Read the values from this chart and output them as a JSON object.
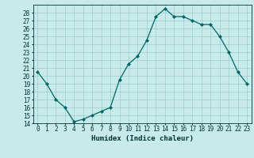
{
  "x": [
    0,
    1,
    2,
    3,
    4,
    5,
    6,
    7,
    8,
    9,
    10,
    11,
    12,
    13,
    14,
    15,
    16,
    17,
    18,
    19,
    20,
    21,
    22,
    23
  ],
  "y": [
    20.5,
    19.0,
    17.0,
    16.0,
    14.2,
    14.5,
    15.0,
    15.5,
    16.0,
    19.5,
    21.5,
    22.5,
    24.5,
    27.5,
    28.5,
    27.5,
    27.5,
    27.0,
    26.5,
    26.5,
    25.0,
    23.0,
    20.5,
    19.0
  ],
  "line_color": "#006666",
  "marker": "D",
  "marker_size": 2,
  "bg_color": "#c8eaea",
  "grid_color": "#99cccc",
  "xlabel": "Humidex (Indice chaleur)",
  "ylim_min": 14,
  "ylim_max": 29,
  "xlim_min": -0.5,
  "xlim_max": 23.5,
  "yticks": [
    14,
    15,
    16,
    17,
    18,
    19,
    20,
    21,
    22,
    23,
    24,
    25,
    26,
    27,
    28
  ],
  "xticks": [
    0,
    1,
    2,
    3,
    4,
    5,
    6,
    7,
    8,
    9,
    10,
    11,
    12,
    13,
    14,
    15,
    16,
    17,
    18,
    19,
    20,
    21,
    22,
    23
  ],
  "font_color": "#003333",
  "tick_fontsize": 5.5,
  "xlabel_fontsize": 6.5,
  "xlabel_fontweight": "bold"
}
